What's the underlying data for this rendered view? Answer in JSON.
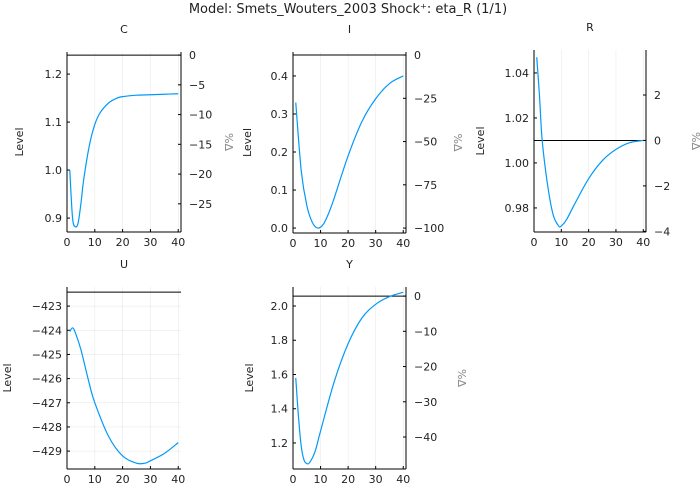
{
  "title": "Model: Smets_Wouters_2003        Shock⁺: eta_R  (1/1)",
  "line_color": "#009af9",
  "chart_data": [
    {
      "type": "line",
      "title": "C",
      "ylabel": "Level",
      "y2label": "%Δ",
      "xlim": [
        0,
        41
      ],
      "ylim": [
        0.871,
        1.246
      ],
      "steady_state": 1.2396,
      "xticks": [
        0,
        10,
        20,
        30,
        40
      ],
      "yticks": [
        0.9,
        1.0,
        1.1,
        1.2
      ],
      "ytick_labels": [
        "0.9",
        "1.0",
        "1.1",
        "1.2"
      ],
      "y2ticks": [
        0,
        -5,
        -10,
        -15,
        -20,
        -25
      ],
      "y2tick_labels": [
        "0",
        "−5",
        "−10",
        "−15",
        "−20",
        "−25"
      ],
      "x": [
        1,
        2,
        3,
        4,
        5,
        6,
        8,
        10,
        12,
        15,
        18,
        20,
        25,
        30,
        35,
        40
      ],
      "y": [
        1.0,
        0.9,
        0.882,
        0.89,
        0.93,
        0.98,
        1.05,
        1.095,
        1.12,
        1.14,
        1.15,
        1.153,
        1.156,
        1.157,
        1.158,
        1.159
      ]
    },
    {
      "type": "line",
      "title": "I",
      "ylabel": "Level",
      "y2label": "%Δ",
      "xlim": [
        0,
        41
      ],
      "ylim": [
        -0.013,
        0.463
      ],
      "steady_state": 0.455,
      "xticks": [
        0,
        10,
        20,
        30,
        40
      ],
      "yticks": [
        0,
        0.1,
        0.2,
        0.3,
        0.4
      ],
      "ytick_labels": [
        "0.0",
        "0.1",
        "0.2",
        "0.3",
        "0.4"
      ],
      "y2ticks": [
        0,
        -25,
        -50,
        -75,
        -100
      ],
      "y2tick_labels": [
        "0",
        "−25",
        "−50",
        "−75",
        "−100"
      ],
      "x": [
        1,
        3,
        5,
        7,
        9,
        11,
        13,
        15,
        20,
        25,
        30,
        35,
        40
      ],
      "y": [
        0.33,
        0.15,
        0.06,
        0.015,
        0.0,
        0.01,
        0.04,
        0.08,
        0.19,
        0.28,
        0.34,
        0.38,
        0.4
      ]
    },
    {
      "type": "line",
      "title": "R",
      "ylabel": "Level",
      "y2label": "%Δ",
      "xlim": [
        0,
        41
      ],
      "ylim": [
        0.9693,
        1.0502
      ],
      "steady_state": 1.01,
      "xticks": [
        0,
        10,
        20,
        30,
        40
      ],
      "yticks": [
        0.98,
        1.0,
        1.02,
        1.04
      ],
      "ytick_labels": [
        "0.98",
        "1.00",
        "1.02",
        "1.04"
      ],
      "y2ticks": [
        2,
        0,
        -2,
        -4
      ],
      "y2tick_labels": [
        "2",
        "0",
        "−2",
        "−4"
      ],
      "x": [
        1,
        2,
        3,
        5,
        7,
        9,
        10,
        12,
        15,
        20,
        25,
        30,
        35,
        40
      ],
      "y": [
        1.047,
        1.03,
        1.01,
        0.99,
        0.977,
        0.972,
        0.972,
        0.975,
        0.982,
        0.993,
        1.001,
        1.006,
        1.009,
        1.01
      ]
    },
    {
      "type": "line",
      "title": "U",
      "ylabel": "Level",
      "xlim": [
        0,
        41
      ],
      "ylim": [
        -429.74,
        -422.21
      ],
      "steady_state": -422.42,
      "xticks": [
        0,
        10,
        20,
        30,
        40
      ],
      "yticks": [
        -423,
        -424,
        -425,
        -426,
        -427,
        -428,
        -429
      ],
      "ytick_labels": [
        "−423",
        "−424",
        "−425",
        "−426",
        "−427",
        "−428",
        "−429"
      ],
      "x": [
        1,
        2,
        3,
        5,
        8,
        10,
        15,
        20,
        25,
        28,
        30,
        35,
        40
      ],
      "y": [
        -424.05,
        -423.9,
        -424.1,
        -424.8,
        -426.2,
        -427.0,
        -428.4,
        -429.2,
        -429.5,
        -429.5,
        -429.4,
        -429.1,
        -428.65
      ]
    },
    {
      "type": "line",
      "title": "Y",
      "ylabel": "Level",
      "y2label": "%Δ",
      "xlim": [
        0,
        41
      ],
      "ylim": [
        1.048,
        2.111
      ],
      "steady_state": 2.058,
      "xticks": [
        0,
        10,
        20,
        30,
        40
      ],
      "yticks": [
        1.2,
        1.4,
        1.6,
        1.8,
        2.0
      ],
      "ytick_labels": [
        "1.2",
        "1.4",
        "1.6",
        "1.8",
        "2.0"
      ],
      "y2ticks": [
        0,
        -10,
        -20,
        -30,
        -40
      ],
      "y2tick_labels": [
        "0",
        "−10",
        "−20",
        "−30",
        "−40"
      ],
      "x": [
        1,
        2,
        3,
        4,
        5,
        6,
        8,
        10,
        15,
        20,
        25,
        30,
        35,
        40
      ],
      "y": [
        1.58,
        1.35,
        1.18,
        1.1,
        1.08,
        1.085,
        1.15,
        1.27,
        1.56,
        1.78,
        1.93,
        2.01,
        2.055,
        2.08
      ]
    }
  ]
}
